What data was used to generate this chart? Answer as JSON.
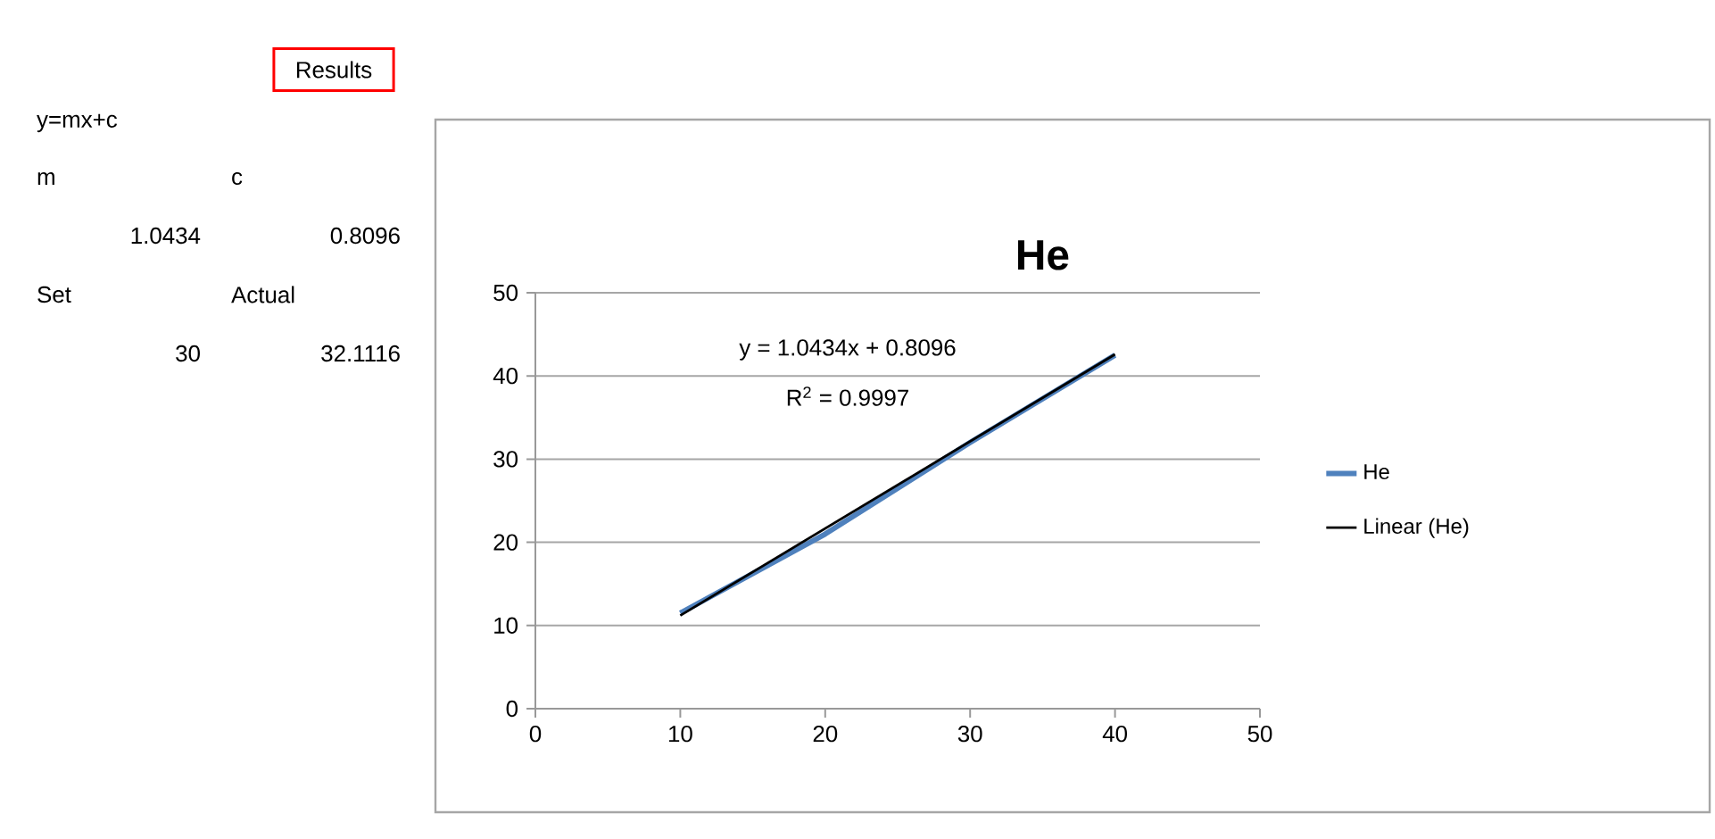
{
  "chart_data": {
    "type": "line",
    "title": "He",
    "x": [
      10,
      20,
      30,
      40
    ],
    "series": [
      {
        "name": "He",
        "color": "#4f81bd",
        "values": [
          11.5,
          21,
          32,
          42.5
        ]
      },
      {
        "name": "Linear (He)",
        "color": "#000000",
        "type": "line",
        "x": [
          10,
          40
        ],
        "values": [
          11.2,
          42.6
        ]
      }
    ],
    "xlim": [
      0,
      50
    ],
    "ylim": [
      0,
      50
    ],
    "xticks": [
      0,
      10,
      20,
      30,
      40,
      50
    ],
    "yticks": [
      0,
      10,
      20,
      30,
      40,
      50
    ],
    "grid": "y",
    "legend": "right",
    "marker": "none",
    "annotations": [
      "y = 1.0434x + 0.8096",
      "R$^{2}$ = 0.9997",
      "Results",
      "y=mx+c",
      "m",
      "c",
      "1.0434",
      "0.8096",
      "Set",
      "Actual",
      "30",
      "32.1116"
    ]
  }
}
